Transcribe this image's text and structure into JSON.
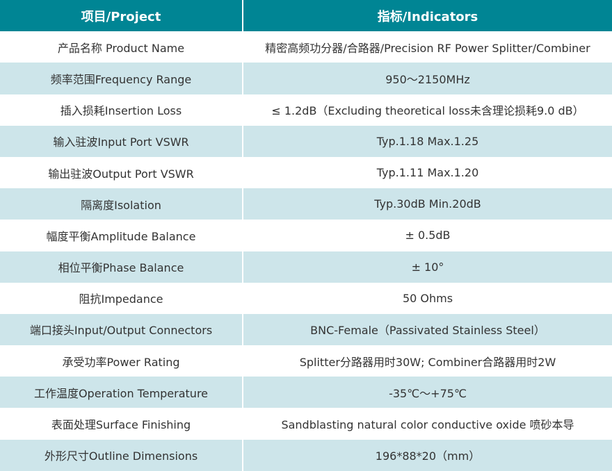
{
  "header": {
    "col1": "项目/Project",
    "col2": "指标/Indicators"
  },
  "colors": {
    "header_bg": "#008594",
    "alt_row_bg": "#cde5ea"
  },
  "rows": [
    {
      "project": "产品名称 Product Name",
      "indicator": "精密高频功分器/合路器/Precision RF Power Splitter/Combiner"
    },
    {
      "project": "频率范围Frequency Range",
      "indicator": "950～2150MHz"
    },
    {
      "project": "插入损耗Insertion Loss",
      "indicator": "≤ 1.2dB（Excluding theoretical loss未含理论损耗9.0 dB）"
    },
    {
      "project": "输入驻波Input Port  VSWR",
      "indicator": "Typ.1.18 Max.1.25"
    },
    {
      "project": "输出驻波Output Port VSWR",
      "indicator": "Typ.1.11 Max.1.20"
    },
    {
      "project": "隔离度Isolation",
      "indicator": "Typ.30dB Min.20dB"
    },
    {
      "project": "幅度平衡Amplitude Balance",
      "indicator": "± 0.5dB"
    },
    {
      "project": "相位平衡Phase Balance",
      "indicator": "± 10°"
    },
    {
      "project": "阻抗Impedance",
      "indicator": "50 Ohms"
    },
    {
      "project": "端口接头Input/Output Connectors",
      "indicator": "BNC-Female（Passivated Stainless Steel）"
    },
    {
      "project": "承受功率Power Rating",
      "indicator": "Splitter分路器用时30W; Combiner合路器用时2W"
    },
    {
      "project": "工作温度Operation Temperature",
      "indicator": "-35℃～+75℃"
    },
    {
      "project": "表面处理Surface Finishing",
      "indicator": "Sandblasting natural color conductive oxide 喷砂本导"
    },
    {
      "project": "外形尺寸Outline Dimensions",
      "indicator": "196*88*20（mm）"
    }
  ]
}
